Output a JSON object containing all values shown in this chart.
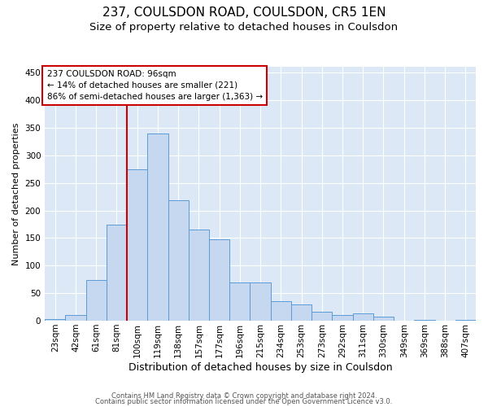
{
  "title": "237, COULSDON ROAD, COULSDON, CR5 1EN",
  "subtitle": "Size of property relative to detached houses in Coulsdon",
  "xlabel": "Distribution of detached houses by size in Coulsdon",
  "ylabel": "Number of detached properties",
  "footnote1": "Contains HM Land Registry data © Crown copyright and database right 2024.",
  "footnote2": "Contains public sector information licensed under the Open Government Licence v3.0.",
  "bar_labels": [
    "23sqm",
    "42sqm",
    "61sqm",
    "81sqm",
    "100sqm",
    "119sqm",
    "138sqm",
    "157sqm",
    "177sqm",
    "196sqm",
    "215sqm",
    "234sqm",
    "253sqm",
    "273sqm",
    "292sqm",
    "311sqm",
    "330sqm",
    "349sqm",
    "369sqm",
    "388sqm",
    "407sqm"
  ],
  "bar_values": [
    3,
    11,
    74,
    175,
    275,
    340,
    218,
    165,
    147,
    69,
    69,
    35,
    29,
    16,
    11,
    13,
    7,
    0,
    2,
    0,
    2
  ],
  "bar_color": "#c5d8f0",
  "bar_edge_color": "#5b9bd5",
  "vline_position": 3.5,
  "vline_color": "#cc0000",
  "annotation_text": "237 COULSDON ROAD: 96sqm\n← 14% of detached houses are smaller (221)\n86% of semi-detached houses are larger (1,363) →",
  "annotation_box_color": "white",
  "annotation_box_edge": "#cc0000",
  "ylim": [
    0,
    460
  ],
  "yticks": [
    0,
    50,
    100,
    150,
    200,
    250,
    300,
    350,
    400,
    450
  ],
  "axes_background": "#dce8f5",
  "grid_color": "white",
  "title_fontsize": 11,
  "subtitle_fontsize": 9.5,
  "xlabel_fontsize": 9,
  "ylabel_fontsize": 8,
  "tick_fontsize": 7.5,
  "annot_fontsize": 7.5
}
